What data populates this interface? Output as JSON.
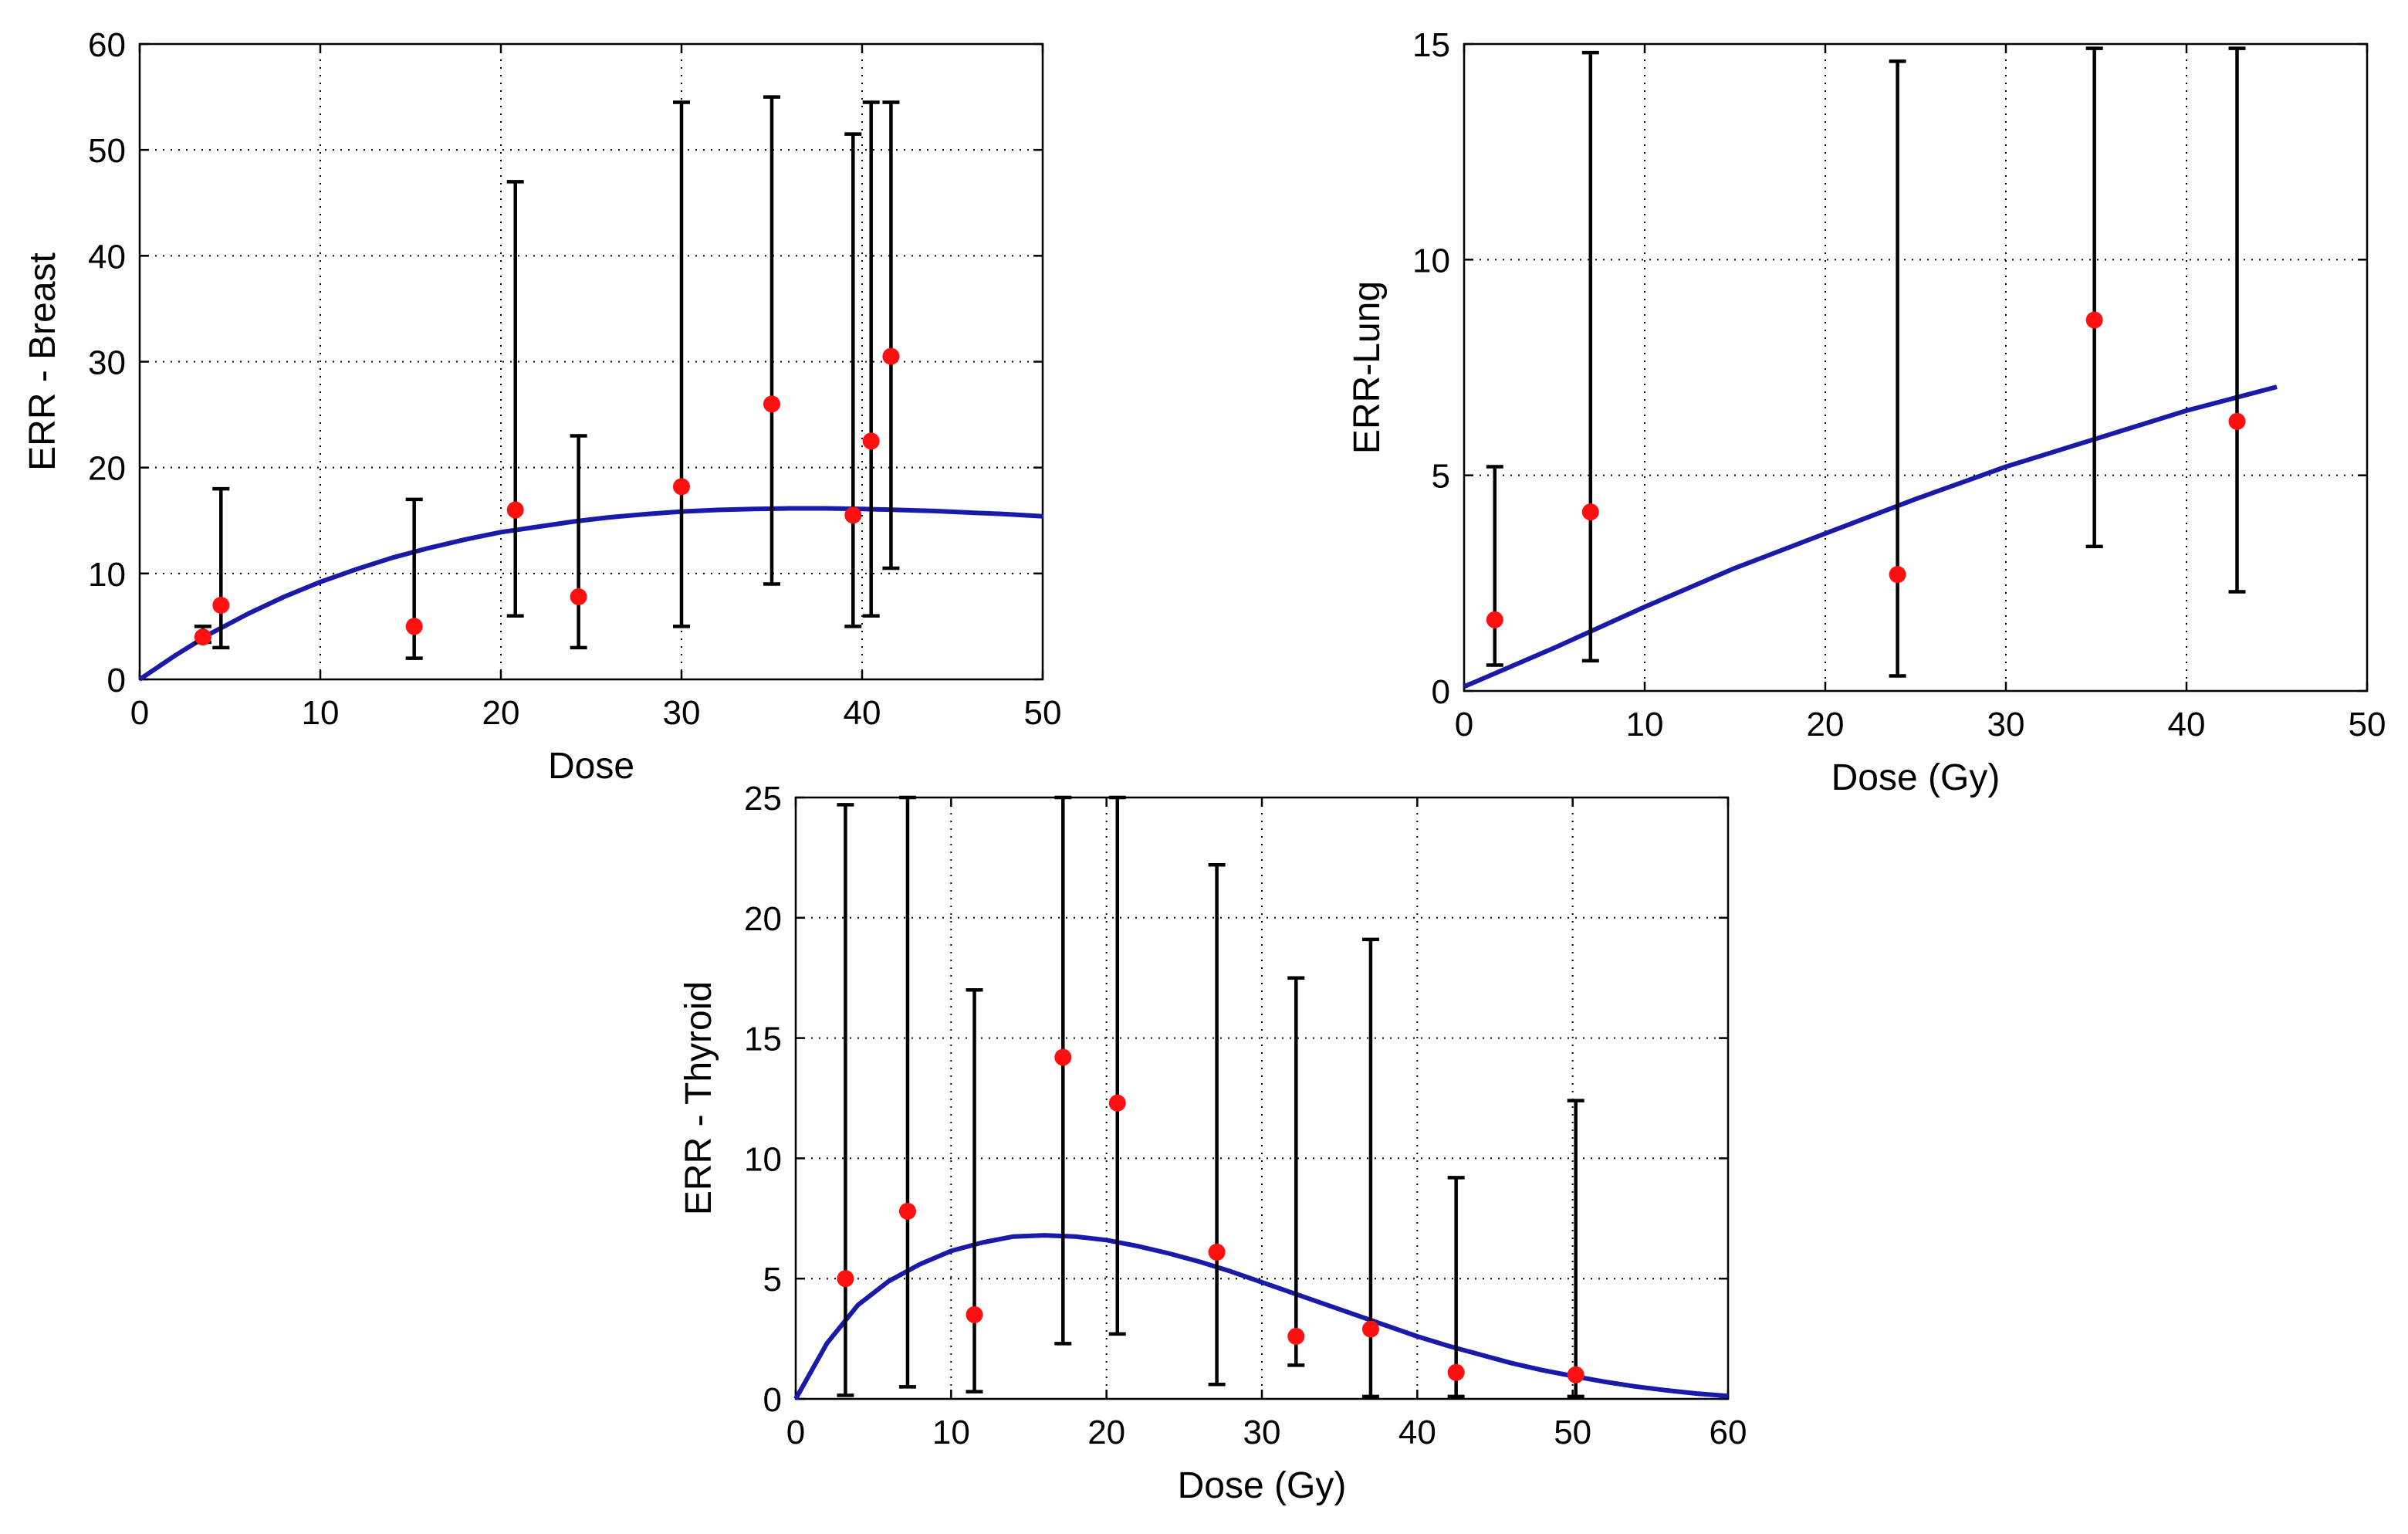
{
  "chart_data": [
    {
      "id": "breast",
      "type": "scatter",
      "xlabel": "Dose",
      "ylabel": "ERR - Breast",
      "xlim": [
        0,
        50
      ],
      "ylim": [
        0,
        60
      ],
      "xticks": [
        0,
        10,
        20,
        30,
        40,
        50
      ],
      "yticks": [
        0,
        10,
        20,
        30,
        40,
        50,
        60
      ],
      "grid": true,
      "points": [
        {
          "x": 3.5,
          "y": 4.0,
          "lo": 3.5,
          "hi": 5.0
        },
        {
          "x": 4.5,
          "y": 7.0,
          "lo": 3.0,
          "hi": 18.0
        },
        {
          "x": 15.2,
          "y": 5.0,
          "lo": 2.0,
          "hi": 17.0
        },
        {
          "x": 20.8,
          "y": 16.0,
          "lo": 6.0,
          "hi": 47.0
        },
        {
          "x": 24.3,
          "y": 7.8,
          "lo": 3.0,
          "hi": 23.0
        },
        {
          "x": 30.0,
          "y": 18.2,
          "lo": 5.0,
          "hi": 54.5
        },
        {
          "x": 35.0,
          "y": 26.0,
          "lo": 9.0,
          "hi": 55.0
        },
        {
          "x": 39.5,
          "y": 15.5,
          "lo": 5.0,
          "hi": 51.5
        },
        {
          "x": 40.5,
          "y": 22.5,
          "lo": 6.0,
          "hi": 54.5
        },
        {
          "x": 41.6,
          "y": 30.5,
          "lo": 10.5,
          "hi": 54.5
        }
      ],
      "curve": {
        "x": [
          0,
          2,
          4,
          6,
          8,
          10,
          12,
          14,
          16,
          18,
          20,
          22,
          24,
          26,
          28,
          30,
          32,
          34,
          36,
          38,
          40,
          42,
          44,
          46,
          48,
          50
        ],
        "y": [
          0,
          2.3,
          4.4,
          6.2,
          7.8,
          9.2,
          10.4,
          11.5,
          12.4,
          13.2,
          13.9,
          14.4,
          14.9,
          15.3,
          15.6,
          15.85,
          16.0,
          16.1,
          16.15,
          16.15,
          16.1,
          16.0,
          15.9,
          15.75,
          15.6,
          15.4
        ]
      },
      "colors": {
        "curve": "#1a1aaa",
        "points": "#ff1010",
        "errorbars": "#000000"
      }
    },
    {
      "id": "lung",
      "type": "scatter",
      "xlabel": "Dose (Gy)",
      "ylabel": "ERR-Lung",
      "xlim": [
        0,
        50
      ],
      "ylim": [
        0,
        15
      ],
      "xticks": [
        0,
        10,
        20,
        30,
        40,
        50
      ],
      "yticks": [
        0,
        5,
        10,
        15
      ],
      "grid": true,
      "points": [
        {
          "x": 1.7,
          "y": 1.65,
          "lo": 0.6,
          "hi": 5.2
        },
        {
          "x": 7.0,
          "y": 4.15,
          "lo": 0.7,
          "hi": 14.8
        },
        {
          "x": 24.0,
          "y": 2.7,
          "lo": 0.35,
          "hi": 14.6
        },
        {
          "x": 34.9,
          "y": 8.6,
          "lo": 3.35,
          "hi": 14.9
        },
        {
          "x": 42.8,
          "y": 6.25,
          "lo": 2.3,
          "hi": 14.9
        }
      ],
      "curve": {
        "x": [
          0,
          5,
          10,
          15,
          20,
          25,
          30,
          35,
          40,
          45
        ],
        "y": [
          0.1,
          1.0,
          1.95,
          2.85,
          3.65,
          4.45,
          5.2,
          5.85,
          6.5,
          7.05
        ]
      },
      "colors": {
        "curve": "#1a1aaa",
        "points": "#ff1010",
        "errorbars": "#000000"
      }
    },
    {
      "id": "thyroid",
      "type": "scatter",
      "xlabel": "Dose (Gy)",
      "ylabel": "ERR - Thyroid",
      "xlim": [
        0,
        60
      ],
      "ylim": [
        0,
        25
      ],
      "xticks": [
        0,
        10,
        20,
        30,
        40,
        50,
        60
      ],
      "yticks": [
        0,
        5,
        10,
        15,
        20,
        25
      ],
      "grid": true,
      "points": [
        {
          "x": 3.2,
          "y": 5.0,
          "lo": 0.15,
          "hi": 24.7
        },
        {
          "x": 7.2,
          "y": 7.8,
          "lo": 0.5,
          "hi": 25.0
        },
        {
          "x": 11.5,
          "y": 3.5,
          "lo": 0.3,
          "hi": 17.0
        },
        {
          "x": 17.2,
          "y": 14.2,
          "lo": 2.3,
          "hi": 25.0
        },
        {
          "x": 20.7,
          "y": 12.3,
          "lo": 2.7,
          "hi": 25.0
        },
        {
          "x": 27.1,
          "y": 6.1,
          "lo": 0.6,
          "hi": 22.2
        },
        {
          "x": 32.2,
          "y": 2.6,
          "lo": 1.4,
          "hi": 17.5
        },
        {
          "x": 37.0,
          "y": 2.9,
          "lo": 0.1,
          "hi": 19.1
        },
        {
          "x": 42.5,
          "y": 1.1,
          "lo": 0.1,
          "hi": 9.2
        },
        {
          "x": 50.2,
          "y": 1.0,
          "lo": 0.1,
          "hi": 12.4
        }
      ],
      "curve": {
        "x": [
          0,
          2,
          4,
          6,
          8,
          10,
          12,
          14,
          16,
          18,
          20,
          22,
          24,
          26,
          28,
          30,
          32,
          34,
          36,
          38,
          40,
          42,
          44,
          46,
          48,
          50,
          52,
          54,
          56,
          58,
          60
        ],
        "y": [
          0,
          2.3,
          3.9,
          4.9,
          5.6,
          6.15,
          6.5,
          6.75,
          6.8,
          6.75,
          6.6,
          6.35,
          6.05,
          5.7,
          5.3,
          4.85,
          4.4,
          3.95,
          3.5,
          3.05,
          2.6,
          2.2,
          1.85,
          1.5,
          1.2,
          0.95,
          0.72,
          0.52,
          0.36,
          0.22,
          0.12
        ]
      },
      "colors": {
        "curve": "#1a1aaa",
        "points": "#ff1010",
        "errorbars": "#000000"
      }
    }
  ]
}
